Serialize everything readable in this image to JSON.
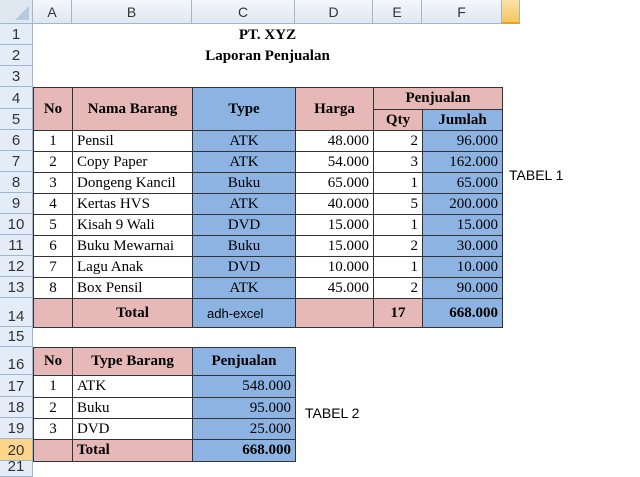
{
  "columns": [
    "A",
    "B",
    "C",
    "D",
    "E",
    "F",
    ""
  ],
  "rows": [
    "1",
    "2",
    "3",
    "4",
    "5",
    "6",
    "7",
    "8",
    "9",
    "10",
    "11",
    "12",
    "13",
    "14",
    "15",
    "16",
    "17",
    "18",
    "19",
    "20",
    "21"
  ],
  "title": "PT. XYZ",
  "subtitle": "Laporan Penjualan",
  "table1": {
    "headers": {
      "no": "No",
      "nama": "Nama Barang",
      "type": "Type",
      "harga": "Harga",
      "penjualan": "Penjualan",
      "qty": "Qty",
      "jumlah": "Jumlah"
    },
    "rows": [
      {
        "no": "1",
        "nama": "Pensil",
        "type": "ATK",
        "harga": "48.000",
        "qty": "2",
        "jumlah": "96.000"
      },
      {
        "no": "2",
        "nama": "Copy Paper",
        "type": "ATK",
        "harga": "54.000",
        "qty": "3",
        "jumlah": "162.000"
      },
      {
        "no": "3",
        "nama": "Dongeng Kancil",
        "type": "Buku",
        "harga": "65.000",
        "qty": "1",
        "jumlah": "65.000"
      },
      {
        "no": "4",
        "nama": "Kertas HVS",
        "type": "ATK",
        "harga": "40.000",
        "qty": "5",
        "jumlah": "200.000"
      },
      {
        "no": "5",
        "nama": "Kisah 9 Wali",
        "type": "DVD",
        "harga": "15.000",
        "qty": "1",
        "jumlah": "15.000"
      },
      {
        "no": "6",
        "nama": "Buku Mewarnai",
        "type": "Buku",
        "harga": "15.000",
        "qty": "2",
        "jumlah": "30.000"
      },
      {
        "no": "7",
        "nama": "Lagu Anak",
        "type": "DVD",
        "harga": "10.000",
        "qty": "1",
        "jumlah": "10.000"
      },
      {
        "no": "8",
        "nama": "Box Pensil",
        "type": "ATK",
        "harga": "45.000",
        "qty": "2",
        "jumlah": "90.000"
      }
    ],
    "total": {
      "label": "Total",
      "note": "adh-excel",
      "qty": "17",
      "jumlah": "668.000"
    },
    "caption": "TABEL 1"
  },
  "table2": {
    "headers": {
      "no": "No",
      "type": "Type Barang",
      "penjualan": "Penjualan"
    },
    "rows": [
      {
        "no": "1",
        "type": "ATK",
        "penjualan": "548.000"
      },
      {
        "no": "2",
        "type": "Buku",
        "penjualan": "95.000"
      },
      {
        "no": "3",
        "type": "DVD",
        "penjualan": "25.000"
      }
    ],
    "total": {
      "label": "Total",
      "penjualan": "668.000"
    },
    "caption": "TABEL 2"
  },
  "colors": {
    "pink": "#e6b8b7",
    "blue": "#8db3e2",
    "selected_header": "#f5c55f"
  }
}
